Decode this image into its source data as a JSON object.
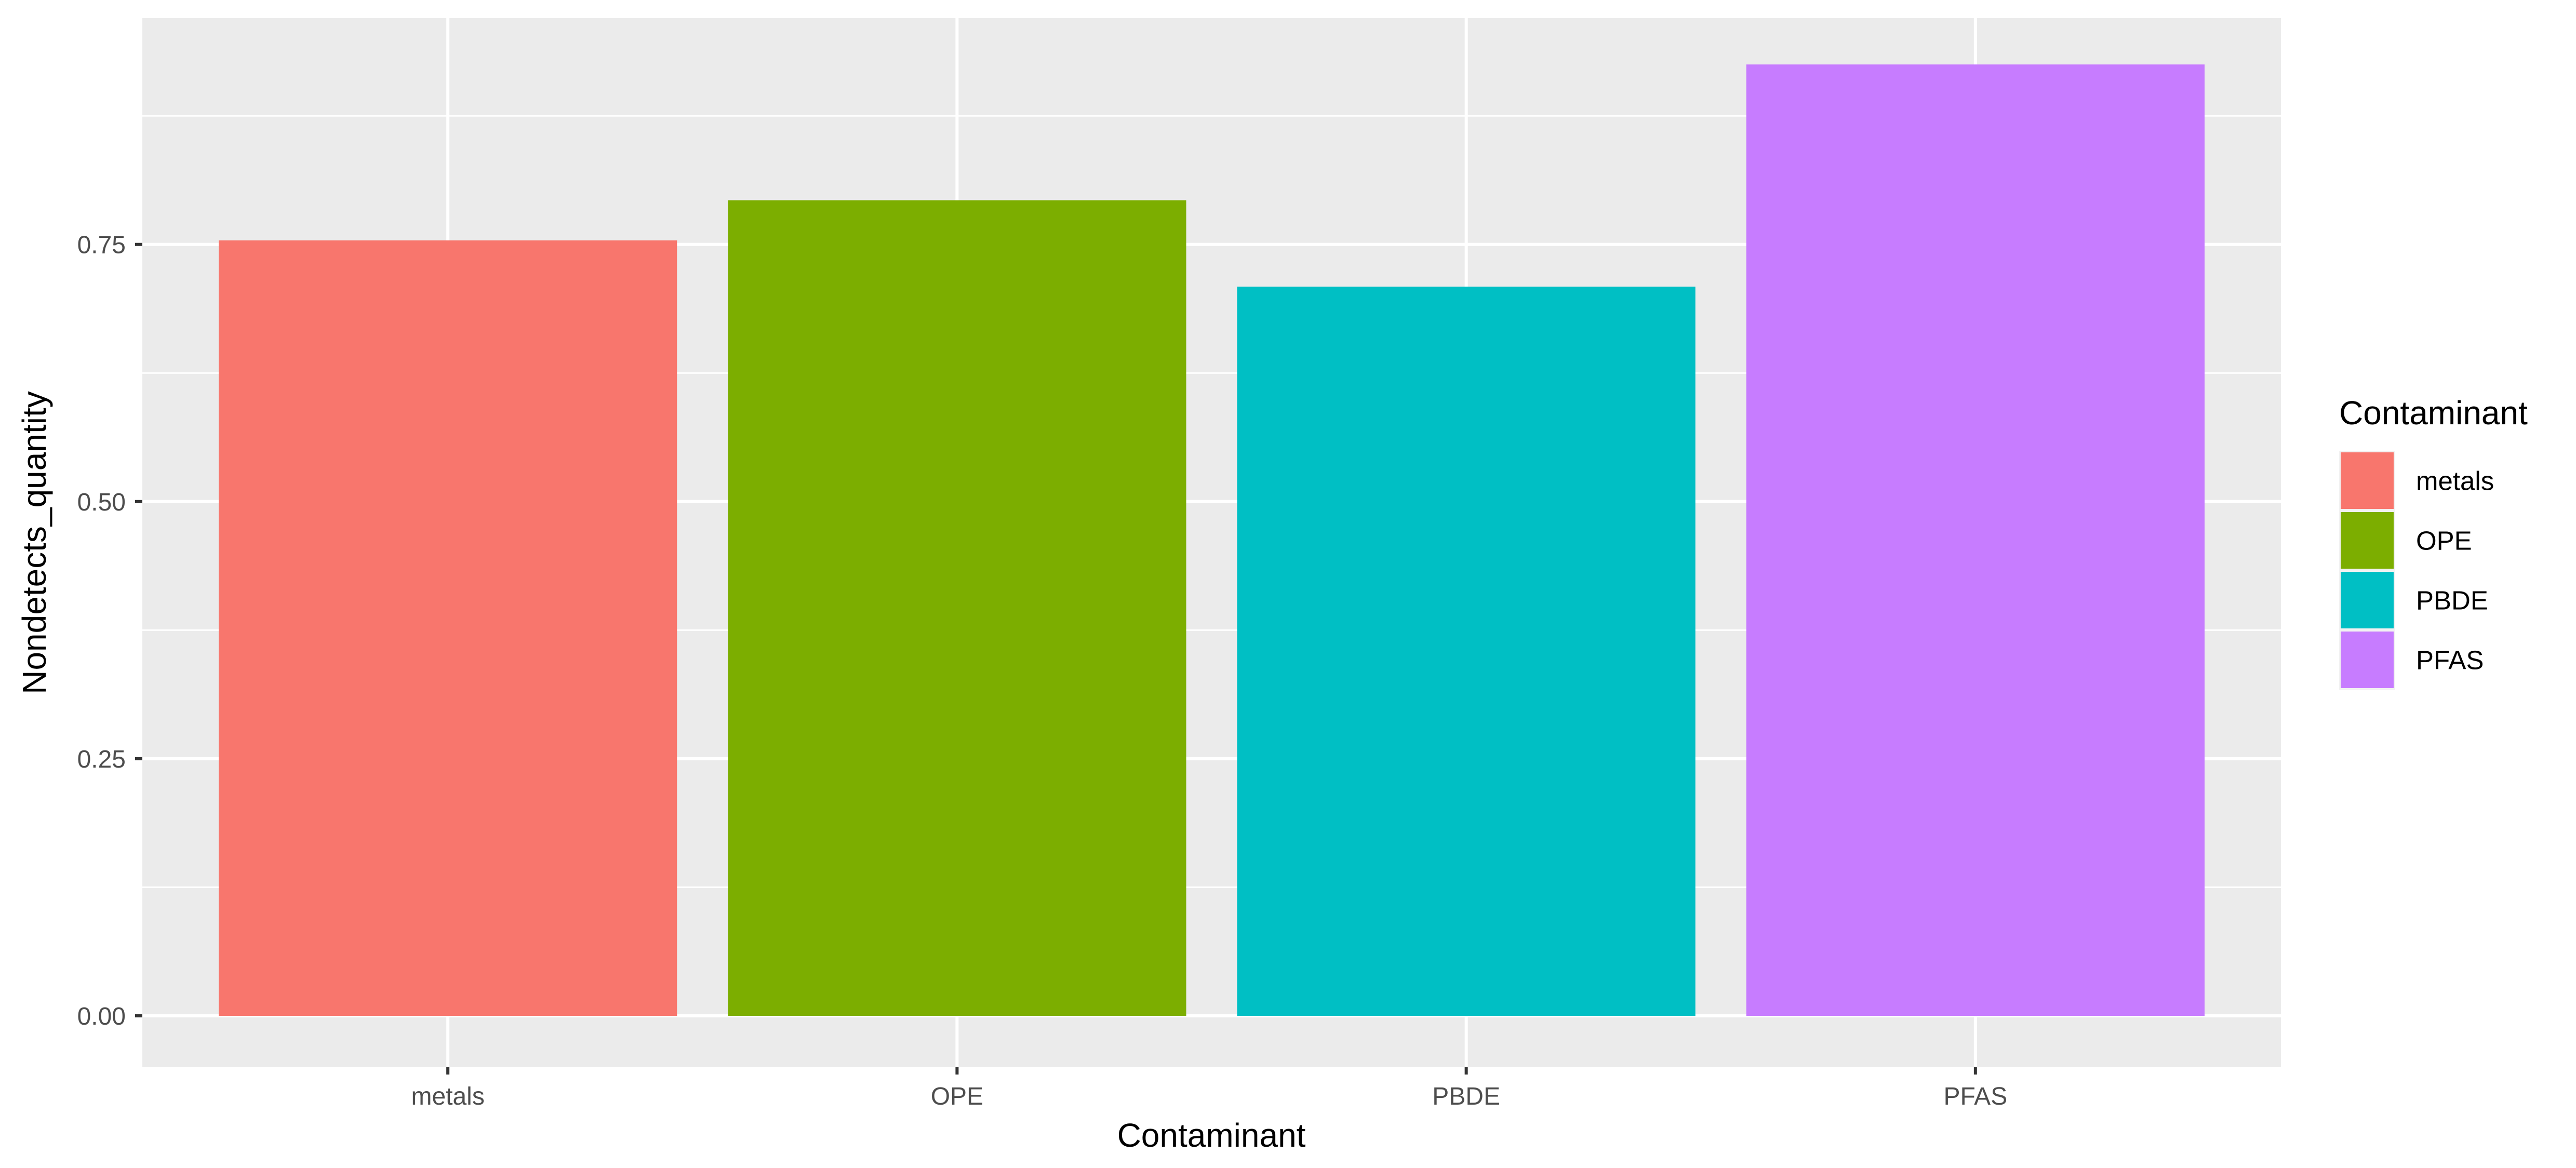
{
  "chart_data": {
    "type": "bar",
    "categories": [
      "metals",
      "OPE",
      "PBDE",
      "PFAS"
    ],
    "values": [
      0.754,
      0.793,
      0.709,
      0.925
    ],
    "colors": [
      "#F8766D",
      "#7CAE00",
      "#00BFC4",
      "#C77CFF"
    ],
    "title": "",
    "xlabel": "Contaminant",
    "ylabel": "Nondetects_quantity",
    "ylim": [
      -0.05,
      0.97
    ],
    "yticks": [
      0.0,
      0.25,
      0.5,
      0.75
    ],
    "ytick_labels": [
      "0.00",
      "0.25",
      "0.50",
      "0.75"
    ],
    "grid": true,
    "panel_background": "#EBEBEB",
    "legend": {
      "title": "Contaminant",
      "placement": "right",
      "items": [
        "metals",
        "OPE",
        "PBDE",
        "PFAS"
      ]
    }
  }
}
